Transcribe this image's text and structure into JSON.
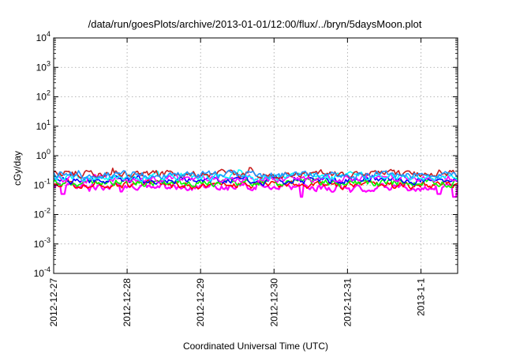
{
  "chart_data": {
    "type": "line",
    "title": "/data/run/goesPlots/archive/2013-01-01/12:00/flux/../bryn/5daysMoon.plot",
    "xlabel": "Coordinated Universal Time (UTC)",
    "ylabel": "cGy/day",
    "y_scale": "log",
    "ylim": [
      0.0001,
      10000
    ],
    "y_ticks": [
      {
        "value": 0.0001,
        "base": "10",
        "exp": "-4"
      },
      {
        "value": 0.001,
        "base": "10",
        "exp": "-3"
      },
      {
        "value": 0.01,
        "base": "10",
        "exp": "-2"
      },
      {
        "value": 0.1,
        "base": "10",
        "exp": "-1"
      },
      {
        "value": 1,
        "base": "10",
        "exp": "0"
      },
      {
        "value": 10,
        "base": "10",
        "exp": "1"
      },
      {
        "value": 100,
        "base": "10",
        "exp": "2"
      },
      {
        "value": 1000,
        "base": "10",
        "exp": "3"
      },
      {
        "value": 10000,
        "base": "10",
        "exp": "4"
      }
    ],
    "xlim": [
      "2012-12-27T00:00",
      "2013-01-01T12:00"
    ],
    "x_ticks": [
      "2012-12-27",
      "2012-12-28",
      "2012-12-29",
      "2012-12-30",
      "2012-12-31",
      "2013-1-1"
    ],
    "grid": true,
    "series": [
      {
        "color": "#ff00ff",
        "level": 0.085,
        "amp": 0.22,
        "spike": 0.5,
        "dips": [
          {
            "x": "2012-12-27T03:00",
            "value": 0.05
          },
          {
            "x": "2012-12-27T22:00",
            "value": 0.06
          },
          {
            "x": "2012-12-30T09:00",
            "value": 0.04
          },
          {
            "x": "2013-01-01T06:00",
            "value": 0.05
          },
          {
            "x": "2013-01-01T11:00",
            "value": 0.04
          }
        ]
      },
      {
        "color": "#ff0000",
        "level": 0.1,
        "amp": 0.22,
        "spike": 0.35,
        "dips": []
      },
      {
        "color": "#00ff00",
        "level": 0.12,
        "amp": 0.22,
        "spike": 0.35,
        "dips": []
      },
      {
        "color": "#0000ff",
        "level": 0.145,
        "amp": 0.22,
        "spike": 0.35,
        "dips": []
      },
      {
        "color": "#ff00ff",
        "level": 0.165,
        "amp": 0.22,
        "spike": 0.35,
        "dips": []
      },
      {
        "color": "#00ffff",
        "level": 0.19,
        "amp": 0.22,
        "spike": 0.35,
        "dips": []
      },
      {
        "color": "#c81e1e",
        "level": 0.24,
        "amp": 0.22,
        "spike": 0.35,
        "dips": []
      },
      {
        "color": "#1e96ff",
        "level": 0.22,
        "amp": 0.22,
        "spike": 0.35,
        "dips": []
      }
    ]
  }
}
